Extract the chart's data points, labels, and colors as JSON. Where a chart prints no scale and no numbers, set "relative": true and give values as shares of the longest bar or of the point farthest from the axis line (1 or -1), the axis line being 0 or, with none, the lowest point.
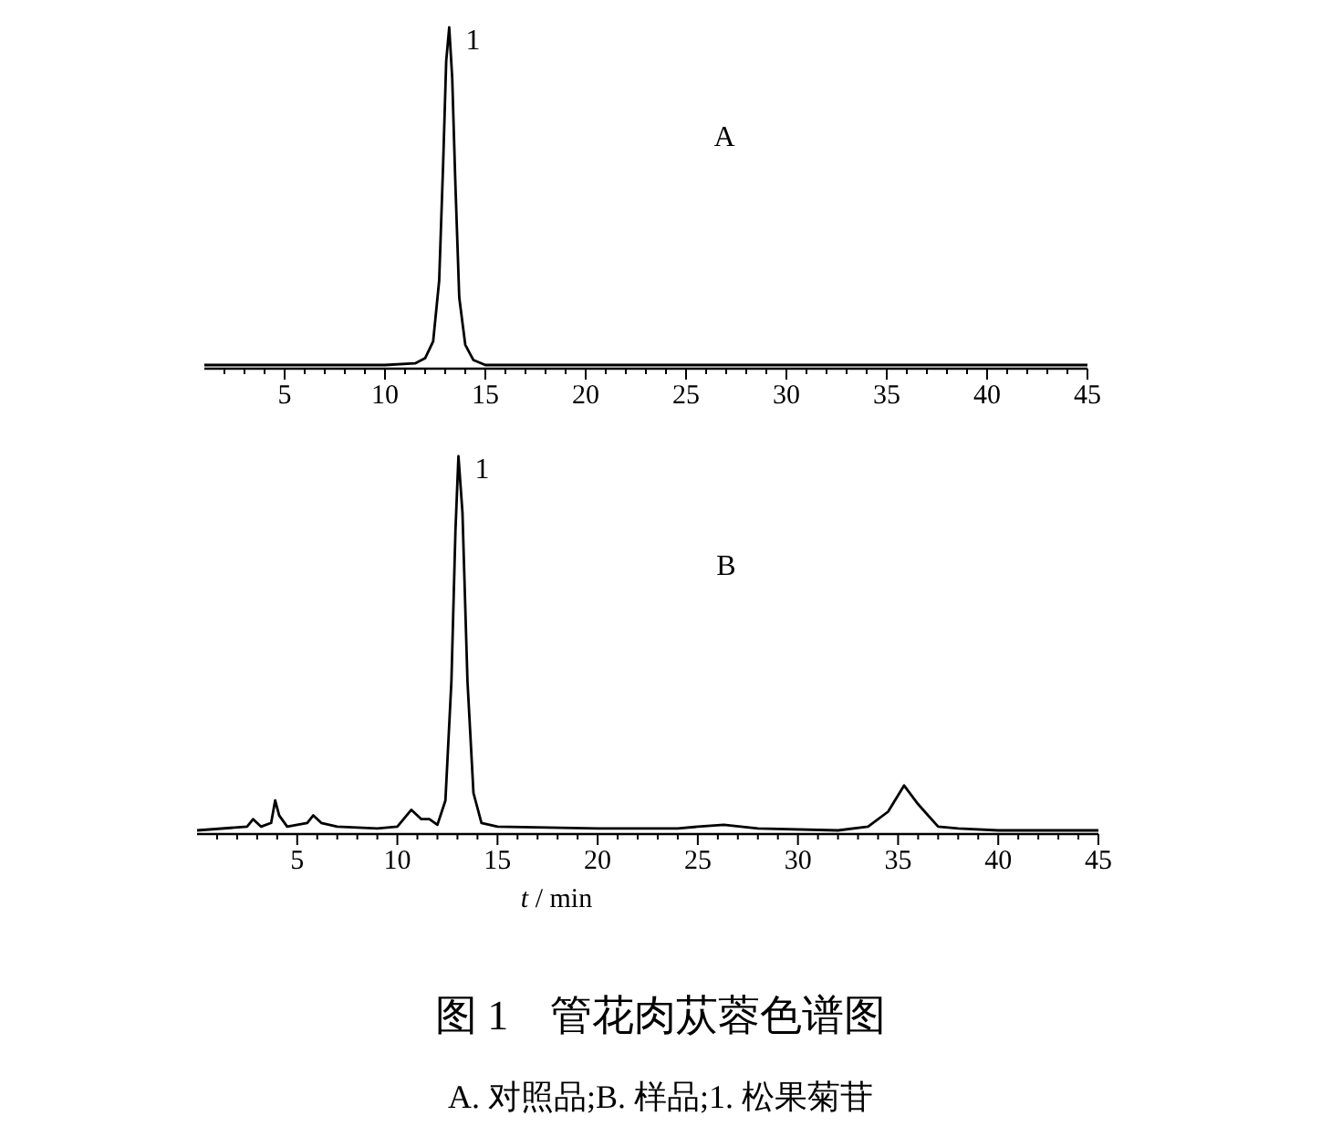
{
  "chart_data": [
    {
      "type": "line",
      "relative": true,
      "xlim": [
        1,
        45
      ],
      "xticks": [
        {
          "value": 2,
          "label": null
        },
        {
          "value": 3,
          "label": null
        },
        {
          "value": 4,
          "label": null
        },
        5,
        {
          "value": 6,
          "label": null
        },
        {
          "value": 7,
          "label": null
        },
        {
          "value": 8,
          "label": null
        },
        {
          "value": 9,
          "label": null
        },
        10,
        {
          "value": 11,
          "label": null
        },
        {
          "value": 12,
          "label": null
        },
        {
          "value": 13,
          "label": null
        },
        {
          "value": 14,
          "label": null
        },
        15,
        {
          "value": 16,
          "label": null
        },
        {
          "value": 17,
          "label": null
        },
        {
          "value": 18,
          "label": null
        },
        {
          "value": 19,
          "label": null
        },
        20,
        {
          "value": 21,
          "label": null
        },
        {
          "value": 22,
          "label": null
        },
        {
          "value": 23,
          "label": null
        },
        {
          "value": 24,
          "label": null
        },
        25,
        {
          "value": 26,
          "label": null
        },
        {
          "value": 27,
          "label": null
        },
        {
          "value": 28,
          "label": null
        },
        {
          "value": 29,
          "label": null
        },
        30,
        {
          "value": 31,
          "label": null
        },
        {
          "value": 32,
          "label": null
        },
        {
          "value": 33,
          "label": null
        },
        {
          "value": 34,
          "label": null
        },
        35,
        {
          "value": 36,
          "label": null
        },
        {
          "value": 37,
          "label": null
        },
        {
          "value": 38,
          "label": null
        },
        {
          "value": 39,
          "label": null
        },
        40,
        {
          "value": 41,
          "label": null
        },
        {
          "value": 42,
          "label": null
        },
        {
          "value": 43,
          "label": null
        },
        {
          "value": 44,
          "label": null
        },
        45
      ],
      "series": [
        {
          "color": "#000000",
          "x": [
            1,
            3,
            5,
            8,
            10,
            11.5,
            12,
            12.4,
            12.7,
            12.9,
            13.05,
            13.2,
            13.35,
            13.5,
            13.7,
            14,
            14.4,
            15,
            18,
            20,
            25,
            30,
            35,
            40,
            45
          ],
          "values": [
            0,
            0,
            0,
            0,
            0,
            0.005,
            0.02,
            0.07,
            0.25,
            0.6,
            0.9,
            1,
            0.85,
            0.55,
            0.2,
            0.06,
            0.015,
            0,
            0,
            0,
            0,
            0,
            0,
            0,
            0
          ]
        }
      ],
      "annotations": [
        "A",
        {
          "text": "1",
          "x": 13.2,
          "y": 1
        }
      ]
    },
    {
      "type": "line",
      "relative": true,
      "xlim": [
        0,
        45
      ],
      "xticks": [
        {
          "value": 1,
          "label": null
        },
        {
          "value": 2,
          "label": null
        },
        {
          "value": 3,
          "label": null
        },
        {
          "value": 4,
          "label": null
        },
        5,
        {
          "value": 6,
          "label": null
        },
        {
          "value": 7,
          "label": null
        },
        {
          "value": 8,
          "label": null
        },
        {
          "value": 9,
          "label": null
        },
        10,
        {
          "value": 11,
          "label": null
        },
        {
          "value": 12,
          "label": null
        },
        {
          "value": 13,
          "label": null
        },
        {
          "value": 14,
          "label": null
        },
        15,
        {
          "value": 16,
          "label": null
        },
        {
          "value": 17,
          "label": null
        },
        {
          "value": 18,
          "label": null
        },
        {
          "value": 19,
          "label": null
        },
        20,
        {
          "value": 21,
          "label": null
        },
        {
          "value": 22,
          "label": null
        },
        {
          "value": 23,
          "label": null
        },
        {
          "value": 24,
          "label": null
        },
        25,
        {
          "value": 26,
          "label": null
        },
        {
          "value": 27,
          "label": null
        },
        {
          "value": 28,
          "label": null
        },
        {
          "value": 29,
          "label": null
        },
        30,
        {
          "value": 31,
          "label": null
        },
        {
          "value": 32,
          "label": null
        },
        {
          "value": 33,
          "label": null
        },
        {
          "value": 34,
          "label": null
        },
        35,
        {
          "value": 36,
          "label": null
        },
        {
          "value": 37,
          "label": null
        },
        {
          "value": 38,
          "label": null
        },
        {
          "value": 39,
          "label": null
        },
        40,
        {
          "value": 41,
          "label": null
        },
        {
          "value": 42,
          "label": null
        },
        {
          "value": 43,
          "label": null
        },
        {
          "value": 44,
          "label": null
        },
        45
      ],
      "xlabel": "*t* / min",
      "title": "图 1　管花肉苁蓉色谱图",
      "subtitle": "A. 对照品;B. 样品;1. 松果菊苷",
      "series": [
        {
          "color": "#000000",
          "x": [
            0,
            2.5,
            2.8,
            3.2,
            3.7,
            3.9,
            4.1,
            4.5,
            5.5,
            5.8,
            6.2,
            7,
            9,
            10,
            10.7,
            11.2,
            11.6,
            12,
            12.4,
            12.7,
            12.9,
            13.05,
            13.25,
            13.5,
            13.8,
            14.2,
            15,
            20,
            24,
            25,
            26.3,
            28,
            32,
            33.5,
            34.5,
            35.3,
            36,
            37,
            38,
            40,
            45
          ],
          "values": [
            0,
            0.01,
            0.03,
            0.01,
            0.02,
            0.08,
            0.04,
            0.01,
            0.02,
            0.04,
            0.02,
            0.01,
            0.005,
            0.01,
            0.055,
            0.03,
            0.03,
            0.015,
            0.08,
            0.4,
            0.8,
            1,
            0.85,
            0.4,
            0.1,
            0.02,
            0.01,
            0.005,
            0.005,
            0.01,
            0.015,
            0.005,
            0,
            0.01,
            0.05,
            0.12,
            0.07,
            0.01,
            0.005,
            0,
            0
          ]
        }
      ],
      "annotations": [
        "B",
        {
          "text": "1",
          "x": 13.05,
          "y": 1
        }
      ]
    }
  ]
}
